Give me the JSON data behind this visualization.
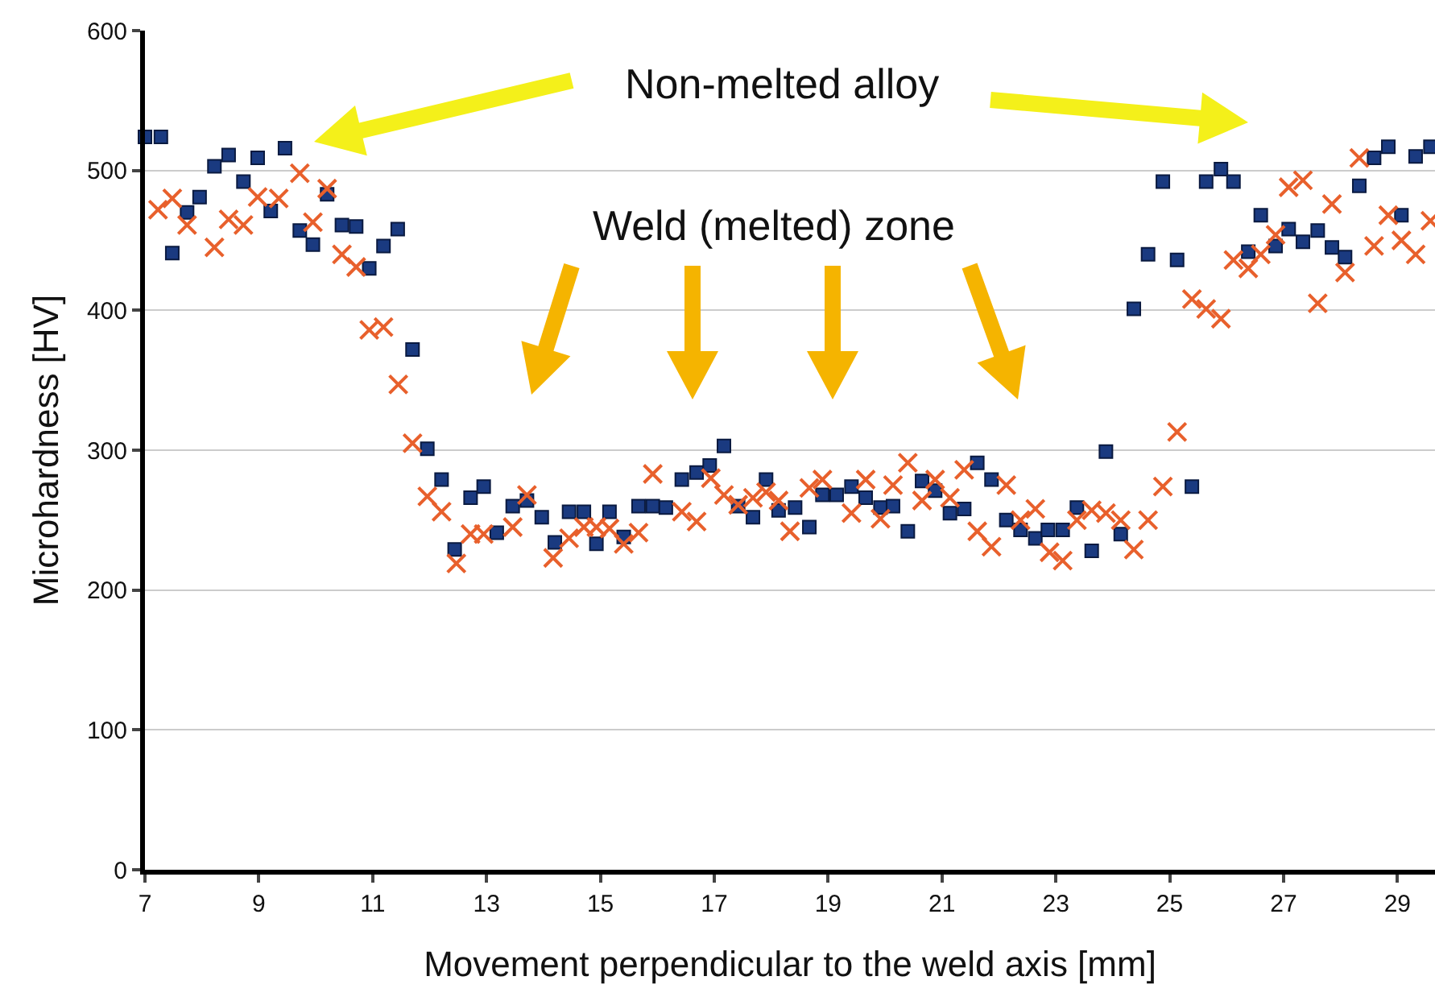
{
  "chart_data": {
    "type": "scatter",
    "xlabel": "Movement perpendicular to the weld axis [mm]",
    "ylabel": "Microhardness [HV]",
    "annotations": [
      "Non-melted alloy",
      "Weld (melted) zone"
    ],
    "xlim": [
      7,
      29.66
    ],
    "xticks": [
      7,
      9,
      11,
      13,
      15,
      17,
      19,
      21,
      23,
      25,
      27,
      29
    ],
    "ylim": [
      0,
      600
    ],
    "yticks": [
      0,
      100,
      200,
      300,
      400,
      500,
      600
    ],
    "grid": "y",
    "series": [
      {
        "color": "#1a3a80",
        "marker": "square",
        "x": [
          7.0,
          7.28,
          7.48,
          7.74,
          7.96,
          8.22,
          8.47,
          8.73,
          8.98,
          9.21,
          9.46,
          9.72,
          9.95,
          10.2,
          10.46,
          10.71,
          10.94,
          11.19,
          11.44,
          11.7,
          11.96,
          12.21,
          12.44,
          12.72,
          12.95,
          13.18,
          13.46,
          13.71,
          13.97,
          14.2,
          14.45,
          14.71,
          14.93,
          15.16,
          15.41,
          15.67,
          15.92,
          16.15,
          16.43,
          16.69,
          16.92,
          17.17,
          17.42,
          17.68,
          17.91,
          18.13,
          18.42,
          18.67,
          18.9,
          19.15,
          19.41,
          19.66,
          19.92,
          20.14,
          20.4,
          20.65,
          20.88,
          21.14,
          21.39,
          21.62,
          21.87,
          22.13,
          22.38,
          22.64,
          22.86,
          23.12,
          23.37,
          23.63,
          23.88,
          24.14,
          24.37,
          24.62,
          24.88,
          25.13,
          25.39,
          25.64,
          25.9,
          26.12,
          26.38,
          26.6,
          26.86,
          27.09,
          27.34,
          27.6,
          27.85,
          28.08,
          28.33,
          28.59,
          28.84,
          29.07,
          29.32,
          29.58
        ],
        "values": [
          524,
          524,
          441,
          470,
          481,
          503,
          511,
          492,
          509,
          471,
          516,
          457,
          447,
          483,
          461,
          460,
          430,
          446,
          458,
          372,
          301,
          279,
          229,
          266,
          274,
          241,
          260,
          264,
          252,
          234,
          256,
          256,
          233,
          256,
          238,
          260,
          260,
          259,
          279,
          284,
          289,
          303,
          260,
          252,
          279,
          257,
          259,
          245,
          268,
          268,
          274,
          266,
          259,
          260,
          242,
          278,
          271,
          255,
          258,
          291,
          279,
          250,
          243,
          237,
          243,
          243,
          259,
          228,
          299,
          240,
          401,
          440,
          492,
          436,
          274,
          492,
          501,
          492,
          442,
          468,
          446,
          458,
          449,
          457,
          445,
          438,
          489,
          509,
          517,
          468,
          510,
          517
        ]
      },
      {
        "color": "#e8602c",
        "marker": "cross",
        "x": [
          7.23,
          7.48,
          7.74,
          8.22,
          8.47,
          8.73,
          8.98,
          9.35,
          9.72,
          9.95,
          10.2,
          10.46,
          10.71,
          10.94,
          11.19,
          11.45,
          11.7,
          11.96,
          12.21,
          12.47,
          12.72,
          12.95,
          13.46,
          13.71,
          14.17,
          14.45,
          14.71,
          14.93,
          15.16,
          15.41,
          15.67,
          15.92,
          16.43,
          16.69,
          16.94,
          17.17,
          17.42,
          17.68,
          17.91,
          18.13,
          18.33,
          18.67,
          18.9,
          19.41,
          19.66,
          19.92,
          20.14,
          20.4,
          20.65,
          20.88,
          21.14,
          21.39,
          21.62,
          21.87,
          22.13,
          22.38,
          22.64,
          22.89,
          23.12,
          23.37,
          23.63,
          23.88,
          24.14,
          24.37,
          24.62,
          24.88,
          25.13,
          25.39,
          25.64,
          25.9,
          26.12,
          26.38,
          26.6,
          26.86,
          27.09,
          27.34,
          27.6,
          27.85,
          28.08,
          28.33,
          28.59,
          28.84,
          29.07,
          29.32,
          29.58
        ],
        "values": [
          472,
          480,
          461,
          445,
          465,
          461,
          481,
          480,
          498,
          463,
          487,
          440,
          431,
          386,
          388,
          347,
          305,
          267,
          256,
          219,
          240,
          240,
          245,
          268,
          223,
          237,
          245,
          245,
          244,
          233,
          241,
          283,
          256,
          249,
          280,
          268,
          261,
          266,
          270,
          264,
          242,
          273,
          279,
          255,
          279,
          251,
          275,
          291,
          264,
          279,
          266,
          286,
          242,
          231,
          275,
          250,
          258,
          227,
          221,
          250,
          257,
          255,
          250,
          229,
          250,
          274,
          313,
          408,
          401,
          394,
          436,
          430,
          440,
          454,
          488,
          493,
          405,
          476,
          427,
          509,
          446,
          468,
          450,
          440,
          464
        ]
      }
    ]
  }
}
